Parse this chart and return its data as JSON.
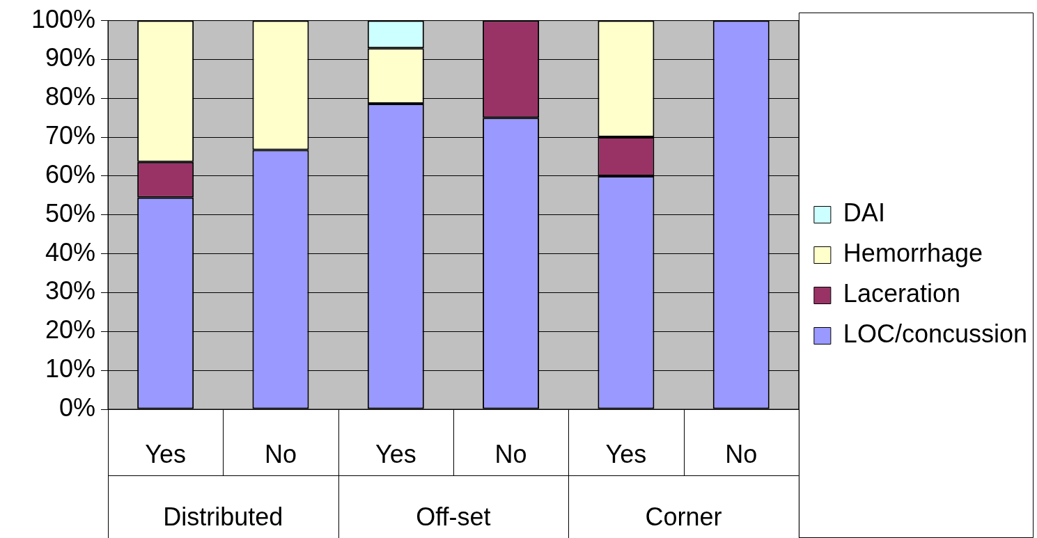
{
  "chart_data": {
    "type": "bar",
    "stacked": true,
    "categories": [
      "Yes",
      "No",
      "Yes",
      "No",
      "Yes",
      "No"
    ],
    "series": [
      {
        "name": "LOC/concussion",
        "color": "#9999ff",
        "values": [
          54.5,
          66.7,
          78.6,
          75,
          60,
          100
        ]
      },
      {
        "name": "Laceration",
        "color": "#993366",
        "values": [
          9.1,
          0,
          0,
          25,
          10,
          0
        ]
      },
      {
        "name": "Hemorrhage",
        "color": "#ffffcc",
        "values": [
          36.4,
          33.3,
          14.3,
          0,
          30,
          0
        ]
      },
      {
        "name": "DAI",
        "color": "#ccffff",
        "values": [
          0,
          0,
          7.1,
          0,
          0,
          0
        ]
      }
    ],
    "annotations": [
      "Distributed",
      "Off-set",
      "Corner"
    ],
    "ylim": [
      0,
      100
    ],
    "yticks": [
      {
        "value": 0,
        "label": "0%"
      },
      {
        "value": 10,
        "label": "10%"
      },
      {
        "value": 20,
        "label": "20%"
      },
      {
        "value": 30,
        "label": "30%"
      },
      {
        "value": 40,
        "label": "40%"
      },
      {
        "value": 50,
        "label": "50%"
      },
      {
        "value": 60,
        "label": "60%"
      },
      {
        "value": 70,
        "label": "70%"
      },
      {
        "value": 80,
        "label": "80%"
      },
      {
        "value": 90,
        "label": "90%"
      },
      {
        "value": 100,
        "label": "100%"
      }
    ],
    "grid": "y",
    "legend": "right"
  }
}
